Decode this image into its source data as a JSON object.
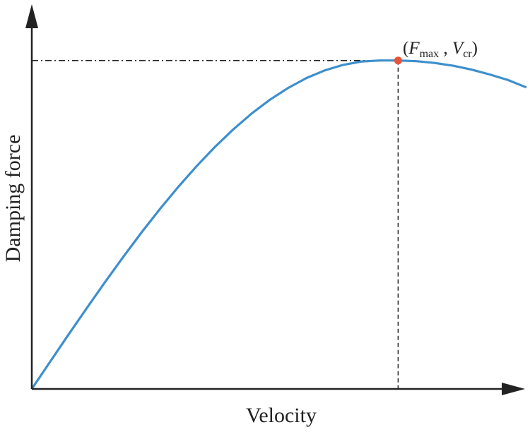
{
  "chart_data": {
    "type": "line",
    "title": "",
    "xlabel": "Velocity",
    "ylabel": "Damping force",
    "xlim": [
      0,
      1.36
    ],
    "ylim": [
      0,
      1.0
    ],
    "grid": false,
    "ticks": false,
    "series": [
      {
        "color": "#3d8fcc",
        "x": [
          0,
          0.05,
          0.1,
          0.15,
          0.2,
          0.25,
          0.3,
          0.35,
          0.4,
          0.45,
          0.5,
          0.55,
          0.6,
          0.65,
          0.7,
          0.75,
          0.8,
          0.85,
          0.9,
          0.95,
          1.0,
          1.05,
          1.1,
          1.15,
          1.2,
          1.25,
          1.3,
          1.35
        ],
        "y": [
          0,
          0.0778,
          0.1551,
          0.2313,
          0.3059,
          0.3784,
          0.4484,
          0.5152,
          0.5785,
          0.6378,
          0.6927,
          0.7429,
          0.788,
          0.8277,
          0.8617,
          0.8898,
          0.9118,
          0.9275,
          0.9369,
          0.94,
          0.94,
          0.938,
          0.933,
          0.925,
          0.914,
          0.9,
          0.884,
          0.863
        ]
      }
    ],
    "annotations": [
      {
        "label_parts": [
          "(",
          "F",
          "max",
          " , ",
          "V",
          "cr",
          ")"
        ],
        "x": 1.0,
        "y": 0.94,
        "marker_color": "#e8533a",
        "guide_lines": "dashed"
      }
    ]
  }
}
